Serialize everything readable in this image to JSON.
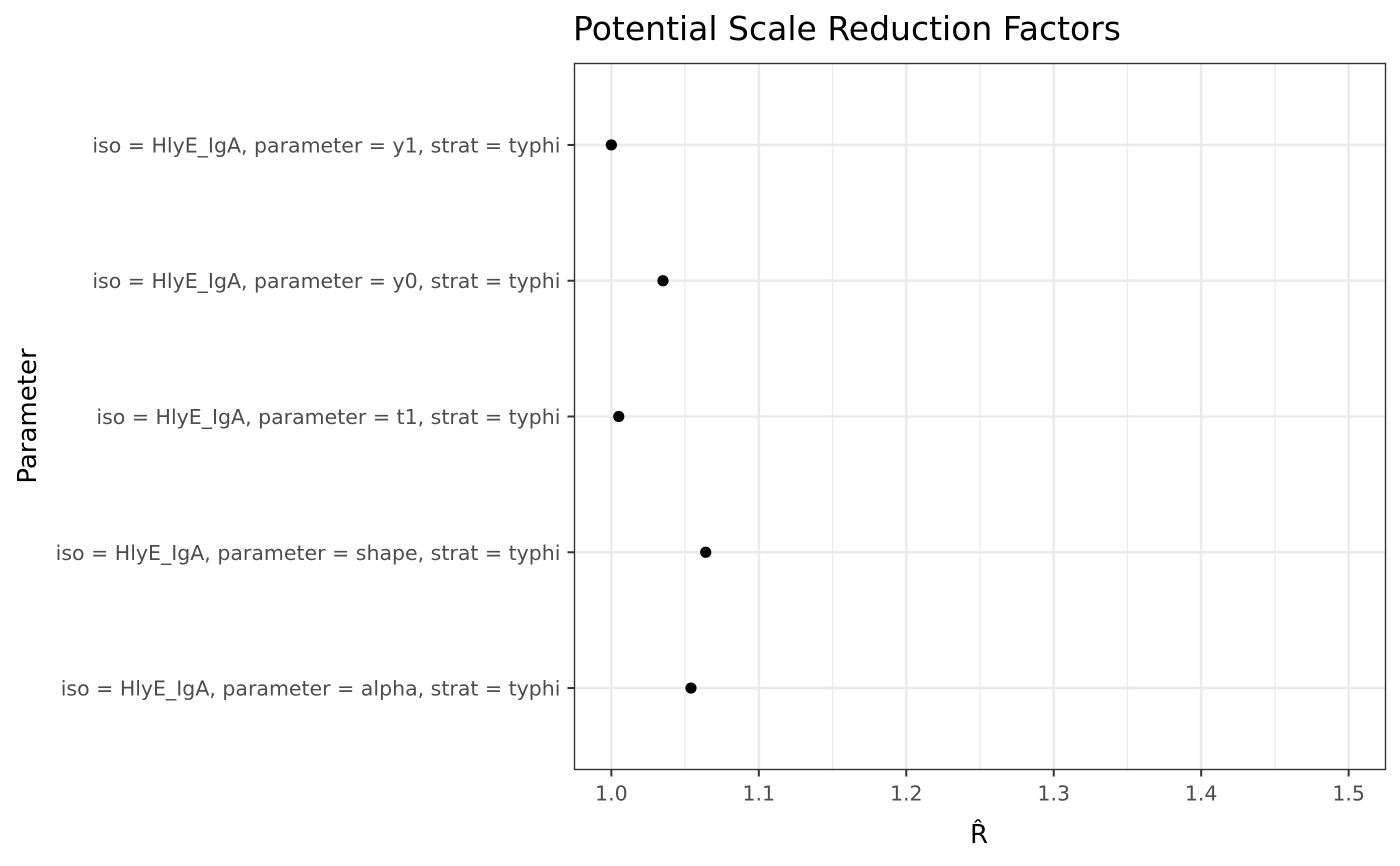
{
  "chart_data": {
    "type": "scatter",
    "title": "Potential Scale Reduction Factors",
    "xlabel": "R̂",
    "ylabel": "Parameter",
    "xlim": [
      0.975,
      1.525
    ],
    "x_ticks": [
      1.0,
      1.1,
      1.2,
      1.3,
      1.4,
      1.5
    ],
    "x_tick_labels": [
      "1.0",
      "1.1",
      "1.2",
      "1.3",
      "1.4",
      "1.5"
    ],
    "grid": true,
    "point_color": "#000000",
    "categories": [
      "iso = HlyE_IgA, parameter = y1, strat = typhi",
      "iso = HlyE_IgA, parameter = y0, strat = typhi",
      "iso = HlyE_IgA, parameter = t1, strat = typhi",
      "iso = HlyE_IgA, parameter = shape, strat = typhi",
      "iso = HlyE_IgA, parameter = alpha, strat = typhi"
    ],
    "values": [
      1.0,
      1.035,
      1.005,
      1.064,
      1.054
    ]
  }
}
